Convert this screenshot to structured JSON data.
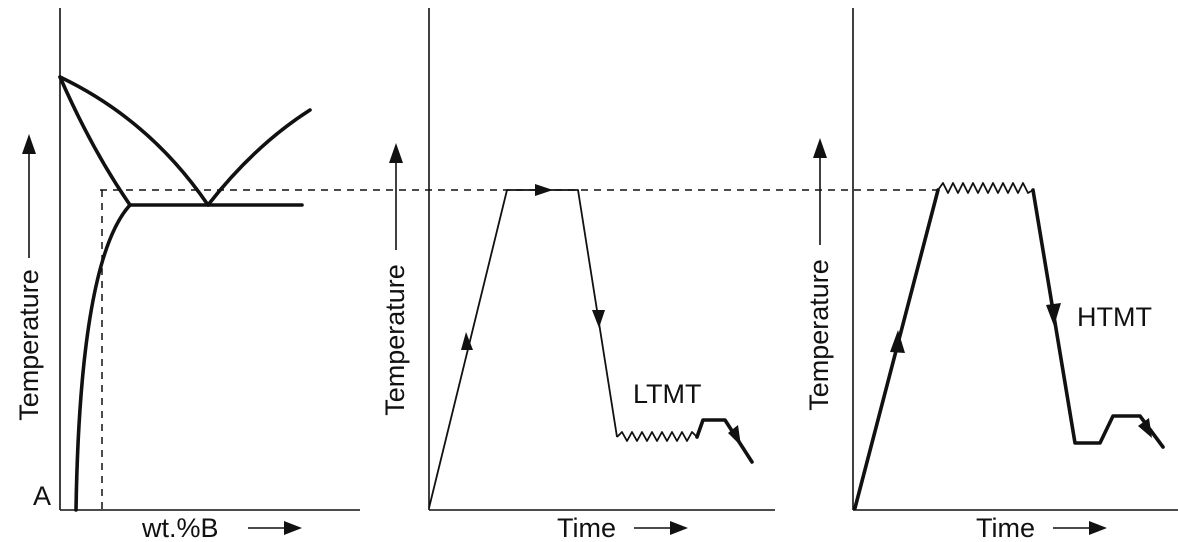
{
  "panels": [
    {
      "id": "phase-diagram",
      "ylabel": "Temperature",
      "xlabel": "wt.%B",
      "origin_label": "A"
    },
    {
      "id": "ltmt-cycle",
      "ylabel": "Temperature",
      "xlabel": "Time",
      "process_label": "LTMT"
    },
    {
      "id": "htmt-cycle",
      "ylabel": "Temperature",
      "xlabel": "Time",
      "process_label": "HTMT"
    }
  ]
}
